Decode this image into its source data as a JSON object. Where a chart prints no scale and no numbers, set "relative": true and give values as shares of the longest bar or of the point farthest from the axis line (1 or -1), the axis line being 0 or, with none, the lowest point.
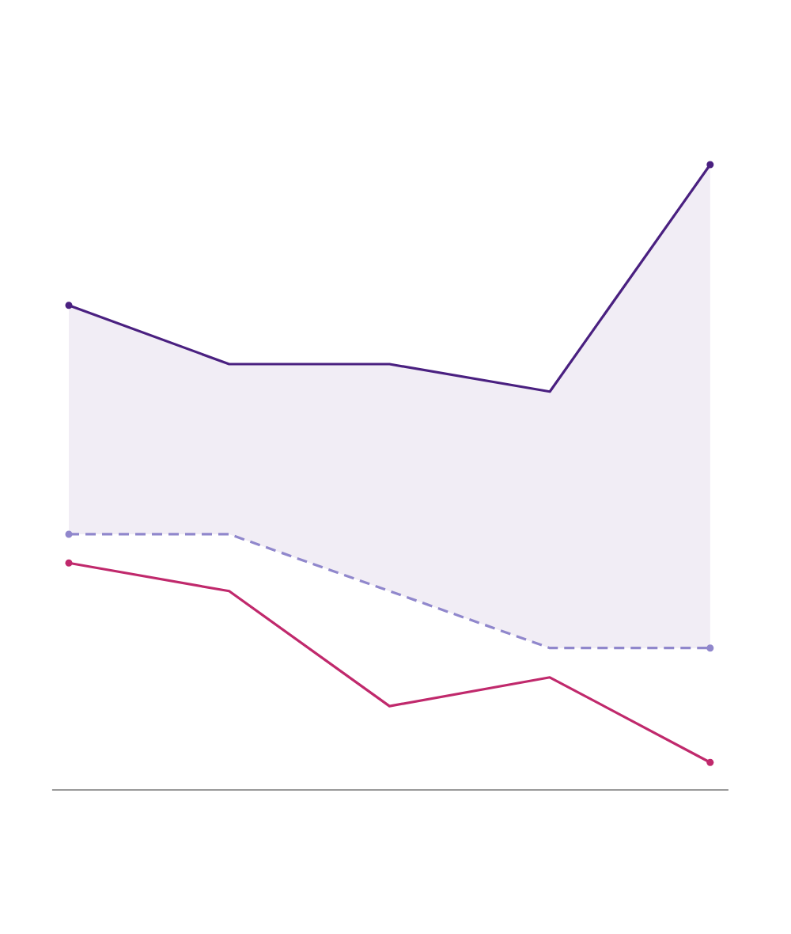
{
  "chart_data": {
    "type": "line",
    "relative": true,
    "categories": [
      null,
      null,
      null,
      null,
      null
    ],
    "line_style": "solid",
    "series": [
      {
        "color": "#4a2080",
        "values": [
          0.775,
          0.681,
          0.681,
          0.637,
          1
        ],
        "lower": [
          0.409,
          0.409,
          0.318,
          0.227,
          0.227
        ],
        "upper": [
          0.775,
          0.681,
          0.681,
          0.637,
          1
        ]
      },
      {
        "color": "#9087cc",
        "values": [
          0.409,
          0.409,
          0.318,
          0.227,
          0.227
        ],
        "line_style": "dashed"
      },
      {
        "color": "#c0296c",
        "values": [
          0.363,
          0.318,
          0.134,
          0.18,
          0.044
        ]
      }
    ]
  }
}
